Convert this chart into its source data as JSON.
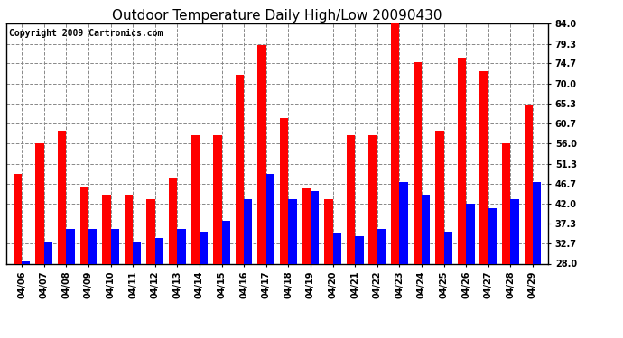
{
  "title": "Outdoor Temperature Daily High/Low 20090430",
  "copyright": "Copyright 2009 Cartronics.com",
  "dates": [
    "04/06",
    "04/07",
    "04/08",
    "04/09",
    "04/10",
    "04/11",
    "04/12",
    "04/13",
    "04/14",
    "04/15",
    "04/16",
    "04/17",
    "04/18",
    "04/19",
    "04/20",
    "04/21",
    "04/22",
    "04/23",
    "04/24",
    "04/25",
    "04/26",
    "04/27",
    "04/28",
    "04/29"
  ],
  "highs": [
    49.0,
    56.0,
    59.0,
    46.0,
    44.0,
    44.0,
    43.0,
    48.0,
    58.0,
    58.0,
    72.0,
    79.0,
    62.0,
    45.5,
    43.0,
    58.0,
    58.0,
    84.0,
    75.0,
    59.0,
    76.0,
    73.0,
    56.0,
    65.0
  ],
  "lows": [
    28.5,
    33.0,
    36.0,
    36.0,
    36.0,
    33.0,
    34.0,
    36.0,
    35.5,
    38.0,
    43.0,
    49.0,
    43.0,
    45.0,
    35.0,
    34.5,
    36.0,
    47.0,
    44.0,
    35.5,
    42.0,
    41.0,
    43.0,
    47.0
  ],
  "high_color": "#ff0000",
  "low_color": "#0000ff",
  "bg_color": "#ffffff",
  "grid_color": "#888888",
  "ymin": 28.0,
  "ymax": 84.0,
  "yticks": [
    28.0,
    32.7,
    37.3,
    42.0,
    46.7,
    51.3,
    56.0,
    60.7,
    65.3,
    70.0,
    74.7,
    79.3,
    84.0
  ],
  "title_fontsize": 11,
  "copyright_fontsize": 7,
  "tick_fontsize": 7,
  "bar_width": 0.38
}
